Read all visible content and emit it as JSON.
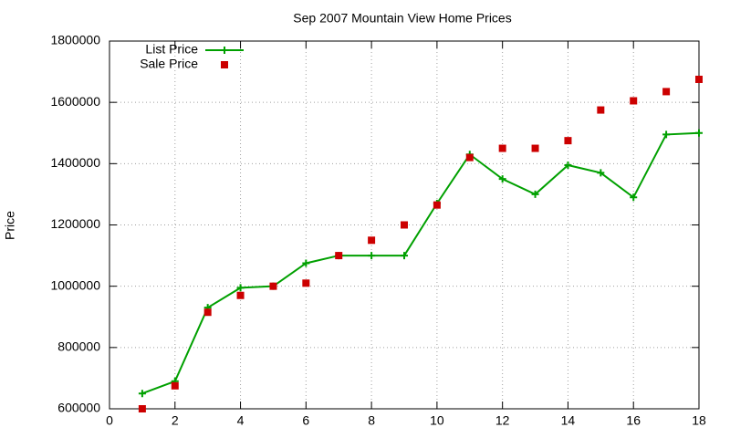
{
  "chart_data": {
    "type": "line",
    "title": "Sep 2007 Mountain View Home Prices",
    "y_label": "Price",
    "x": [
      1,
      2,
      3,
      4,
      5,
      6,
      7,
      8,
      9,
      10,
      11,
      12,
      13,
      14,
      15,
      16,
      17,
      18
    ],
    "series": [
      {
        "name": "List Price",
        "color": "#00a000",
        "style": "linespoints",
        "values": [
          650000,
          690000,
          930000,
          995000,
          1000000,
          1075000,
          1100000,
          1100000,
          1100000,
          1270000,
          1430000,
          1350000,
          1300000,
          1395000,
          1370000,
          1290000,
          1495000,
          1500000
        ]
      },
      {
        "name": "Sale Price",
        "color": "#cc0000",
        "style": "points",
        "values": [
          600000,
          675000,
          915000,
          970000,
          1000000,
          1010000,
          1100000,
          1150000,
          1200000,
          1265000,
          1420000,
          1450000,
          1450000,
          1475000,
          1575000,
          1605000,
          1635000,
          1675000
        ]
      }
    ],
    "xlim": [
      0,
      18
    ],
    "xticks": [
      0,
      2,
      4,
      6,
      8,
      10,
      12,
      14,
      16,
      18
    ],
    "ylim": [
      600000,
      1800000
    ],
    "yticks": [
      600000,
      800000,
      1000000,
      1200000,
      1400000,
      1600000,
      1800000
    ],
    "grid": true,
    "legend": "top-left"
  }
}
